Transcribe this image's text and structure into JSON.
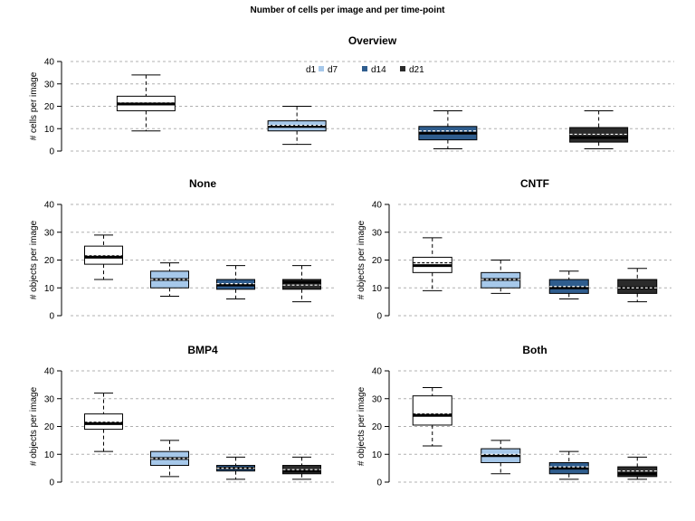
{
  "figure": {
    "title": "Number of cells per image and per time-point"
  },
  "legend": {
    "entries": [
      {
        "label": "d1",
        "color": "#ffffff"
      },
      {
        "label": "d7",
        "color": "#a6c8ea"
      },
      {
        "label": "d14",
        "color": "#2f5d8e"
      },
      {
        "label": "d21",
        "color": "#2b2b2b"
      }
    ]
  },
  "chart_data": [
    {
      "type": "boxplot",
      "title": "Overview",
      "ylabel": "# cells per image",
      "ylim": [
        0,
        40
      ],
      "yticks": [
        0,
        10,
        20,
        30,
        40
      ],
      "grid": true,
      "legend": "top-center",
      "categories": [
        "d1",
        "d7",
        "d14",
        "d21"
      ],
      "boxes": [
        {
          "min": 9,
          "q1": 18,
          "median": 21,
          "q3": 24.5,
          "max": 34,
          "mean": 21.5
        },
        {
          "min": 3,
          "q1": 9,
          "median": 11,
          "q3": 13.5,
          "max": 20,
          "mean": 11.5
        },
        {
          "min": 1,
          "q1": 5,
          "median": 8,
          "q3": 11,
          "max": 18,
          "mean": 9
        },
        {
          "min": 1,
          "q1": 4,
          "median": 6,
          "q3": 10.5,
          "max": 18,
          "mean": 7.5
        }
      ]
    },
    {
      "type": "boxplot",
      "title": "None",
      "ylabel": "# objects per image",
      "ylim": [
        0,
        40
      ],
      "yticks": [
        0,
        10,
        20,
        30,
        40
      ],
      "grid": true,
      "categories": [
        "d1",
        "d7",
        "d14",
        "d21"
      ],
      "boxes": [
        {
          "min": 13,
          "q1": 18.5,
          "median": 21,
          "q3": 25,
          "max": 29,
          "mean": 21.5
        },
        {
          "min": 7,
          "q1": 10,
          "median": 13,
          "q3": 16,
          "max": 19,
          "mean": 13
        },
        {
          "min": 6,
          "q1": 9.5,
          "median": 11,
          "q3": 13,
          "max": 18,
          "mean": 11.5
        },
        {
          "min": 5,
          "q1": 9.5,
          "median": 12,
          "q3": 13,
          "max": 18,
          "mean": 11
        }
      ]
    },
    {
      "type": "boxplot",
      "title": "CNTF",
      "ylabel": "# objects per image",
      "ylim": [
        0,
        40
      ],
      "yticks": [
        0,
        10,
        20,
        30,
        40
      ],
      "grid": true,
      "categories": [
        "d1",
        "d7",
        "d14",
        "d21"
      ],
      "boxes": [
        {
          "min": 9,
          "q1": 15.5,
          "median": 18,
          "q3": 21,
          "max": 28,
          "mean": 19
        },
        {
          "min": 8,
          "q1": 10,
          "median": 13,
          "q3": 15.5,
          "max": 20,
          "mean": 13
        },
        {
          "min": 6,
          "q1": 8,
          "median": 10,
          "q3": 13,
          "max": 16,
          "mean": 10.5
        },
        {
          "min": 5,
          "q1": 8,
          "median": 10,
          "q3": 13,
          "max": 17,
          "mean": 10
        }
      ]
    },
    {
      "type": "boxplot",
      "title": "BMP4",
      "ylabel": "# objects per image",
      "ylim": [
        0,
        40
      ],
      "yticks": [
        0,
        10,
        20,
        30,
        40
      ],
      "grid": true,
      "categories": [
        "d1",
        "d7",
        "d14",
        "d21"
      ],
      "boxes": [
        {
          "min": 11,
          "q1": 19,
          "median": 21,
          "q3": 24.5,
          "max": 32,
          "mean": 21.5
        },
        {
          "min": 2,
          "q1": 6,
          "median": 8.5,
          "q3": 11,
          "max": 15,
          "mean": 8.5
        },
        {
          "min": 1,
          "q1": 4,
          "median": 5,
          "q3": 6,
          "max": 9,
          "mean": 5
        },
        {
          "min": 1,
          "q1": 3,
          "median": 4,
          "q3": 6,
          "max": 9,
          "mean": 4.5
        }
      ]
    },
    {
      "type": "boxplot",
      "title": "Both",
      "ylabel": "# objects per image",
      "ylim": [
        0,
        40
      ],
      "yticks": [
        0,
        10,
        20,
        30,
        40
      ],
      "grid": true,
      "categories": [
        "d1",
        "d7",
        "d14",
        "d21"
      ],
      "boxes": [
        {
          "min": 13,
          "q1": 20.5,
          "median": 24,
          "q3": 31,
          "max": 34,
          "mean": 24.5
        },
        {
          "min": 3,
          "q1": 7,
          "median": 9.5,
          "q3": 12,
          "max": 15,
          "mean": 10
        },
        {
          "min": 1,
          "q1": 3,
          "median": 5,
          "q3": 7,
          "max": 11,
          "mean": 5.5
        },
        {
          "min": 1,
          "q1": 2,
          "median": 3,
          "q3": 5.5,
          "max": 9,
          "mean": 4
        }
      ]
    }
  ]
}
